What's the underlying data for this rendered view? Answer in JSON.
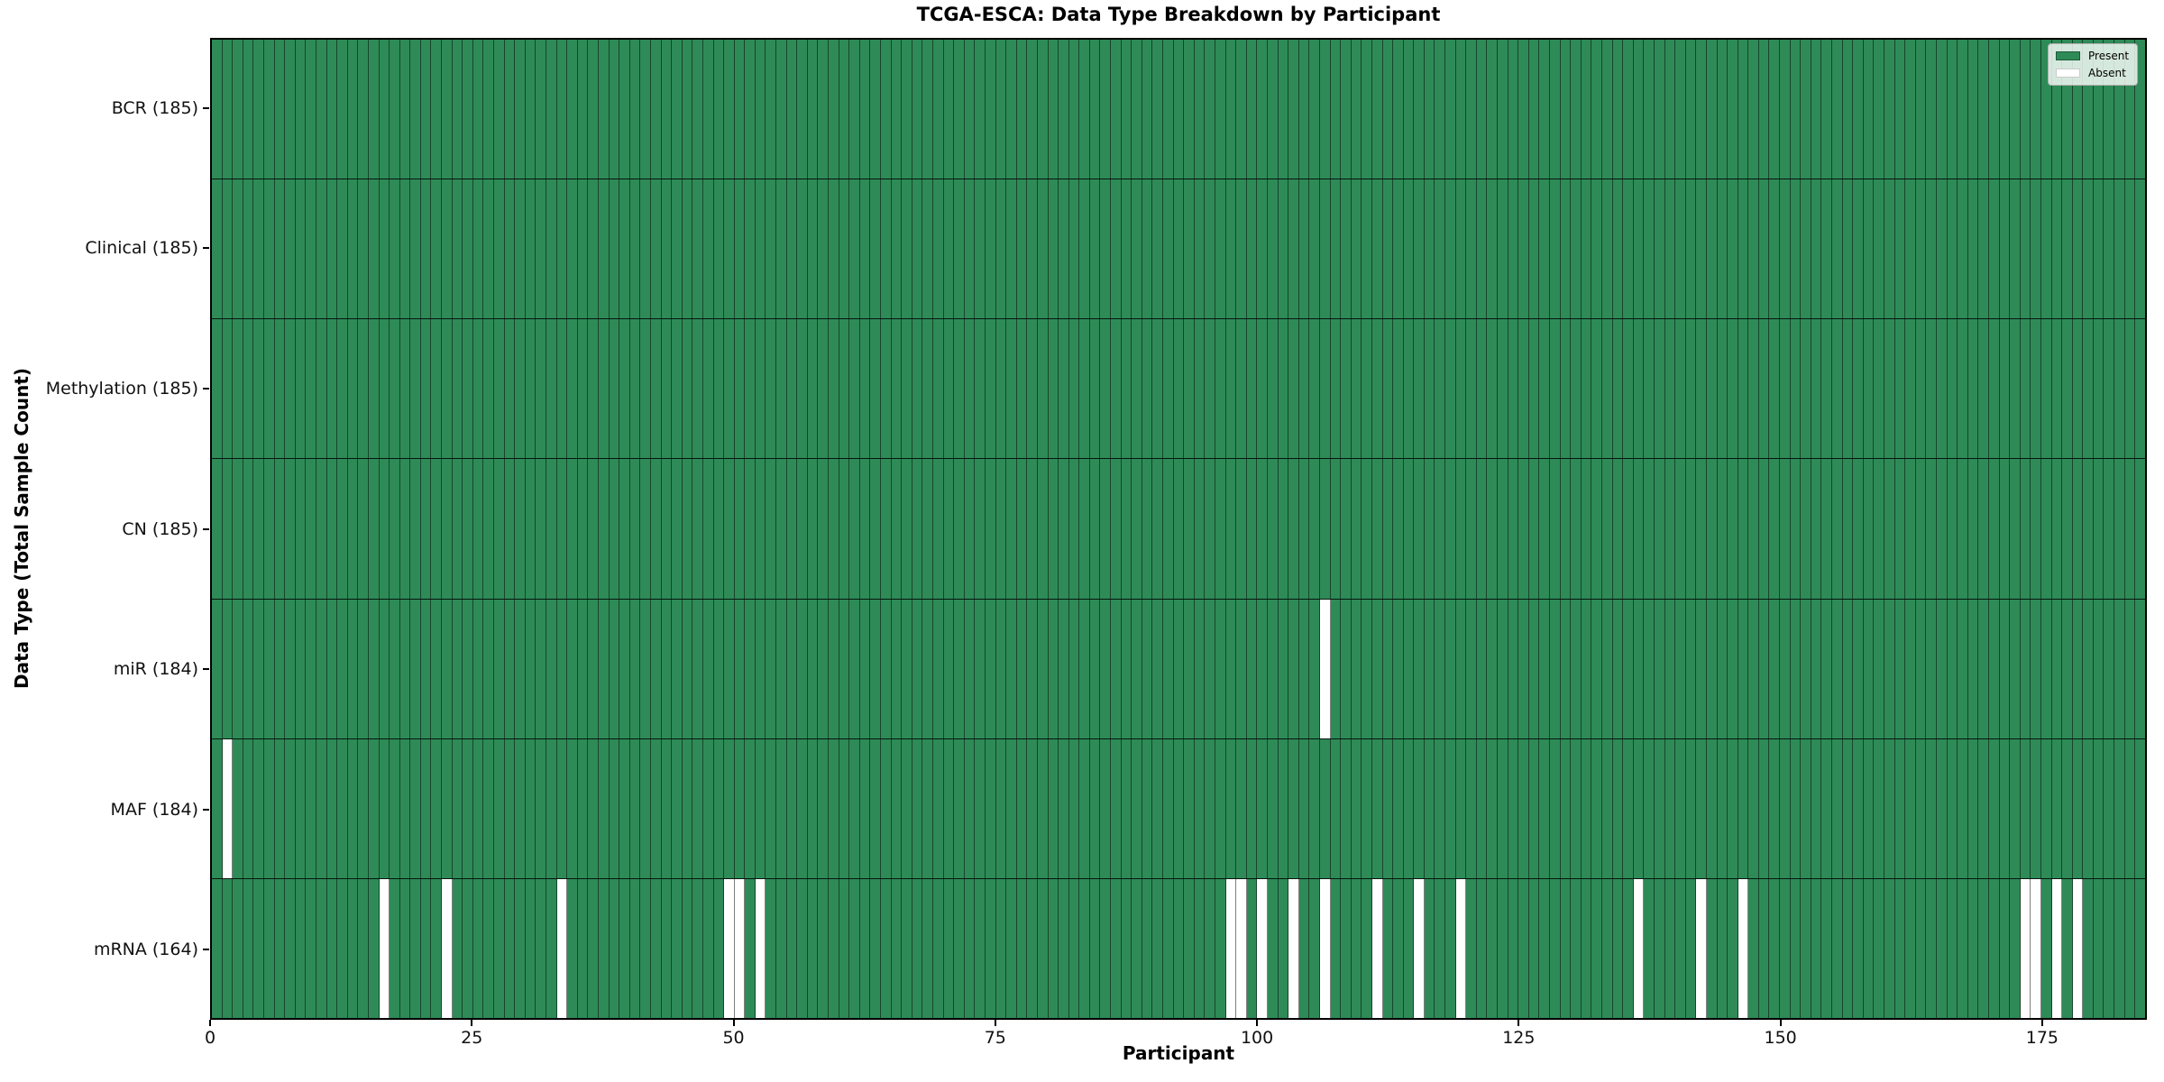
{
  "title": "TCGA-ESCA: Data Type Breakdown by Participant",
  "colors": {
    "present": "#2E8B57",
    "absent": "#ffffff",
    "cell_edge": "rgba(0,0,0,0.5)",
    "axis": "#000000",
    "legend_face": "rgba(255,255,255,0.8)",
    "legend_edge": "#b0b0b0"
  },
  "chart_data": {
    "type": "heatmap",
    "title": "TCGA-ESCA: Data Type Breakdown by Participant",
    "xlabel": "Participant",
    "ylabel": "Data Type (Total Sample Count)",
    "n_participants": 185,
    "xlim": [
      0,
      185
    ],
    "x_ticks": [
      0,
      25,
      50,
      75,
      100,
      125,
      150,
      175
    ],
    "grid": false,
    "legend_position": "upper right",
    "legend": [
      {
        "label": "Present",
        "color": "#2E8B57"
      },
      {
        "label": "Absent",
        "color": "#ffffff"
      }
    ],
    "rows": [
      {
        "label": "BCR (185)",
        "name": "BCR",
        "present_count": 185,
        "absent_participants": []
      },
      {
        "label": "Clinical (185)",
        "name": "Clinical",
        "present_count": 185,
        "absent_participants": []
      },
      {
        "label": "Methylation (185)",
        "name": "Methylation",
        "present_count": 185,
        "absent_participants": []
      },
      {
        "label": "CN (185)",
        "name": "CN",
        "present_count": 185,
        "absent_participants": []
      },
      {
        "label": "miR (184)",
        "name": "miR",
        "present_count": 184,
        "absent_participants": [
          106
        ]
      },
      {
        "label": "MAF (184)",
        "name": "MAF",
        "present_count": 184,
        "absent_participants": [
          1
        ]
      },
      {
        "label": "mRNA (164)",
        "name": "mRNA",
        "present_count": 164,
        "absent_participants": [
          16,
          22,
          33,
          49,
          50,
          52,
          97,
          98,
          100,
          103,
          106,
          111,
          115,
          119,
          136,
          142,
          146,
          173,
          174,
          176,
          178
        ]
      }
    ]
  }
}
